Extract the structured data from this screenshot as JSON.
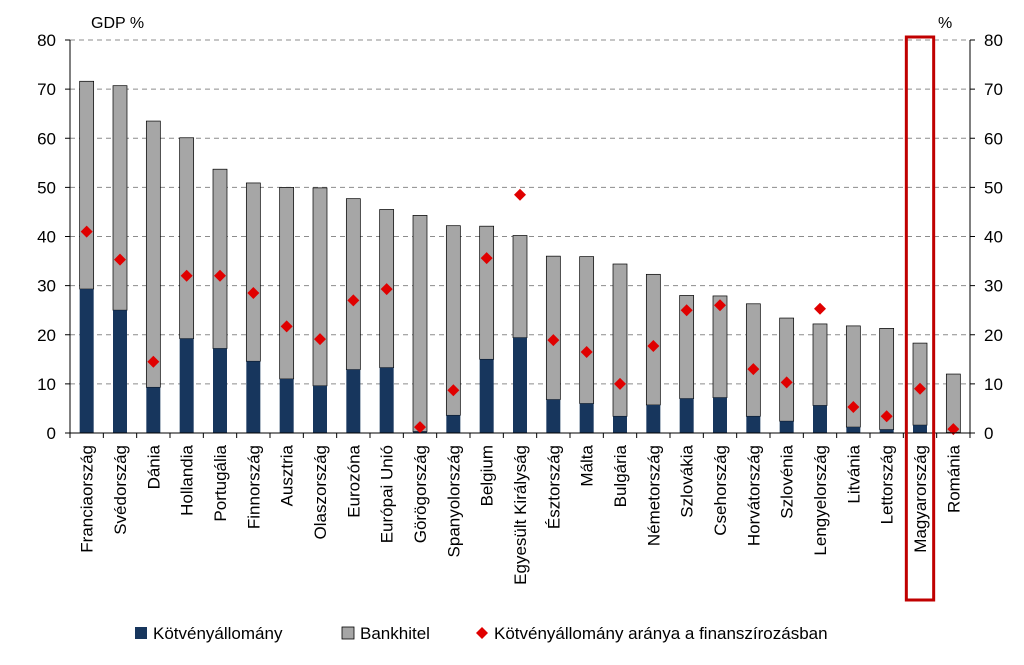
{
  "chart_data": {
    "type": "bar",
    "stacked": true,
    "y_left_unit": "GDP %",
    "y_right_unit": "%",
    "ylim_left": [
      0,
      80
    ],
    "ylim_right": [
      0,
      80
    ],
    "yticks": [
      0,
      10,
      20,
      30,
      40,
      50,
      60,
      70,
      80
    ],
    "grid": "horizontal dashed",
    "categories": [
      "Franciaország",
      "Svédország",
      "Dánia",
      "Hollandia",
      "Portugália",
      "Finnország",
      "Ausztria",
      "Olaszország",
      "Eurozóna",
      "Európai Unió",
      "Görögország",
      "Spanyolország",
      "Belgium",
      "Egyesült Királyság",
      "Észtország",
      "Málta",
      "Bulgária",
      "Németország",
      "Szlovákia",
      "Csehország",
      "Horvátország",
      "Szlovénia",
      "Lengyelország",
      "Litvánia",
      "Lettország",
      "Magyarország",
      "Románia"
    ],
    "highlighted_category": "Magyarország",
    "series": [
      {
        "name": "Kötvényállomány",
        "kind": "bar",
        "axis": "left",
        "color": "#17365d",
        "values": [
          29.3,
          25.0,
          9.3,
          19.2,
          17.2,
          14.6,
          11.0,
          9.6,
          12.9,
          13.3,
          0.3,
          3.6,
          15.0,
          19.4,
          6.8,
          6.0,
          3.4,
          5.7,
          7.0,
          7.2,
          3.4,
          2.4,
          5.6,
          1.2,
          0.7,
          1.6,
          0.1
        ]
      },
      {
        "name": "Bankhitel",
        "kind": "bar",
        "axis": "left",
        "color": "#a6a6a6",
        "values": [
          42.3,
          45.7,
          54.2,
          40.9,
          36.5,
          36.3,
          39.0,
          40.3,
          34.8,
          32.2,
          44.0,
          38.6,
          27.1,
          20.8,
          29.2,
          29.9,
          31.0,
          26.6,
          21.0,
          20.7,
          22.9,
          21.0,
          16.6,
          20.6,
          20.6,
          16.7,
          11.9
        ]
      },
      {
        "name": "Kötvényállomány aránya a finanszírozásban",
        "kind": "marker",
        "axis": "right",
        "color": "#e00000",
        "values": [
          41.0,
          35.3,
          14.5,
          32.0,
          32.0,
          28.5,
          21.7,
          19.1,
          27.0,
          29.3,
          1.2,
          8.7,
          35.6,
          48.5,
          18.9,
          16.5,
          10.0,
          17.7,
          25.0,
          26.0,
          13.0,
          10.3,
          25.3,
          5.3,
          3.4,
          9.0,
          0.8
        ]
      }
    ]
  }
}
